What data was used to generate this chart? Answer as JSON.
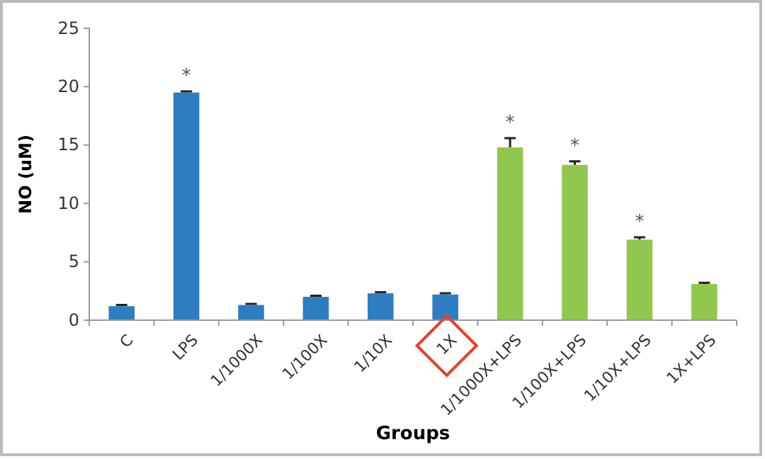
{
  "chart_data": {
    "type": "bar",
    "xlabel": "Groups",
    "ylabel": "NO (uM)",
    "categories": [
      "C",
      "LPS",
      "1/1000X",
      "1/100X",
      "1/10X",
      "1X",
      "1/1000X+LPS",
      "1/100X+LPS",
      "1/10X+LPS",
      "1X+LPS"
    ],
    "values": [
      1.2,
      19.5,
      1.3,
      2.0,
      2.3,
      2.2,
      14.8,
      13.3,
      6.9,
      3.1
    ],
    "errors": [
      0.1,
      0.1,
      0.1,
      0.1,
      0.1,
      0.1,
      0.8,
      0.3,
      0.2,
      0.1
    ],
    "colors": [
      "#2e7dc2",
      "#2e7dc2",
      "#2e7dc2",
      "#2e7dc2",
      "#2e7dc2",
      "#2e7dc2",
      "#92c74f",
      "#92c74f",
      "#92c74f",
      "#92c74f"
    ],
    "ylim": [
      0,
      25
    ],
    "yticks": [
      0,
      5,
      10,
      15,
      20,
      25
    ],
    "grid": false,
    "annotations": [
      {
        "text": "*",
        "x": "LPS",
        "y": 19.5
      },
      {
        "text": "*",
        "x": "1/1000X+LPS",
        "y": 14.8
      },
      {
        "text": "*",
        "x": "1/100X+LPS",
        "y": 13.3
      },
      {
        "text": "*",
        "x": "1/10X+LPS",
        "y": 6.9
      }
    ]
  }
}
